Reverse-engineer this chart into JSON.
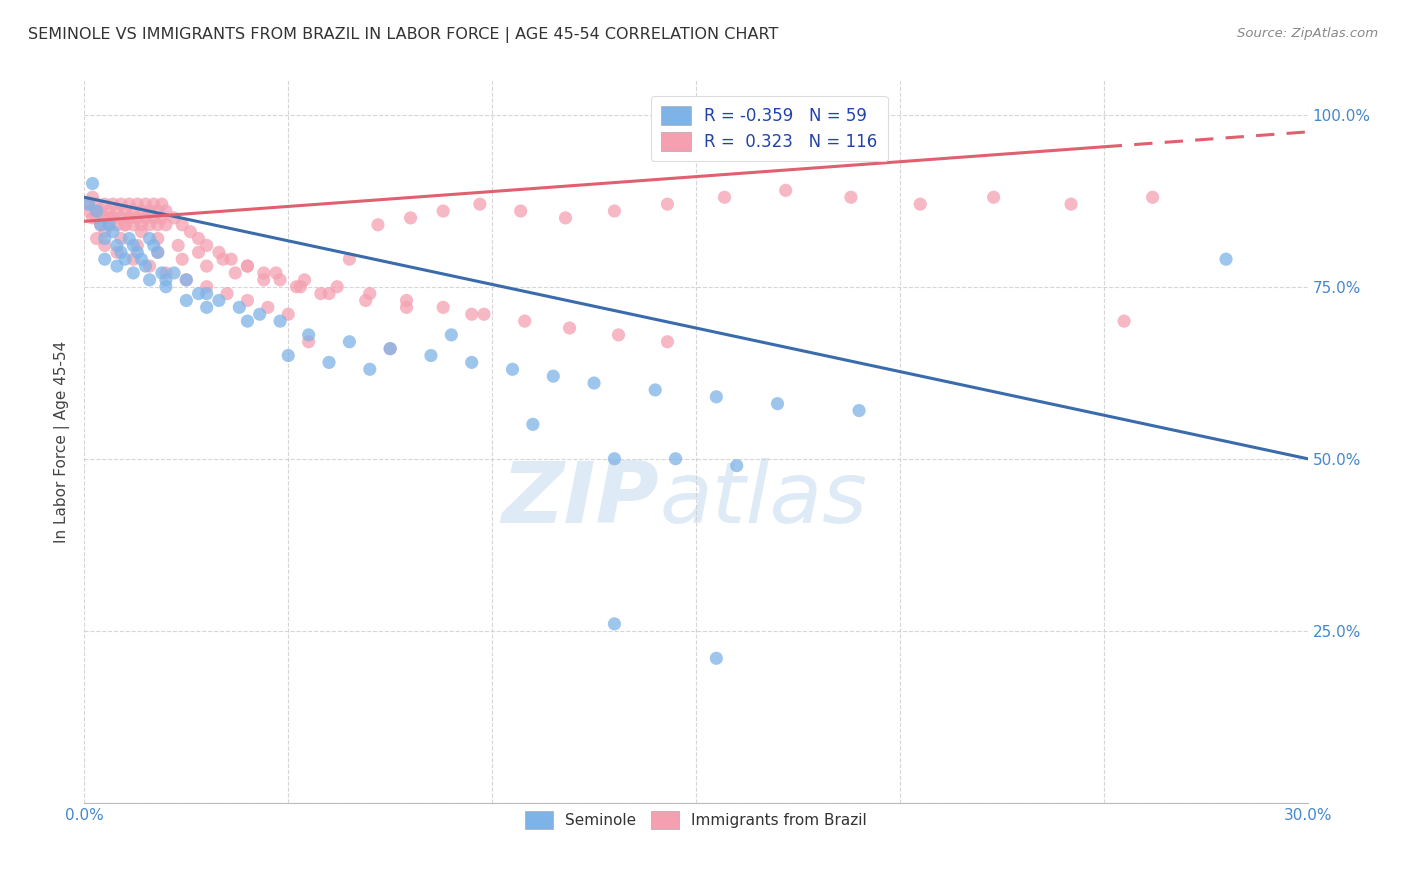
{
  "title": "SEMINOLE VS IMMIGRANTS FROM BRAZIL IN LABOR FORCE | AGE 45-54 CORRELATION CHART",
  "source": "Source: ZipAtlas.com",
  "ylabel": "In Labor Force | Age 45-54",
  "x_min": 0.0,
  "x_max": 0.3,
  "y_min": 0.0,
  "y_max": 1.05,
  "x_ticks": [
    0.0,
    0.05,
    0.1,
    0.15,
    0.2,
    0.25,
    0.3
  ],
  "y_ticks": [
    0.0,
    0.25,
    0.5,
    0.75,
    1.0
  ],
  "y_tick_labels": [
    "",
    "25.0%",
    "50.0%",
    "75.0%",
    "100.0%"
  ],
  "blue_R": -0.359,
  "blue_N": 59,
  "pink_R": 0.323,
  "pink_N": 116,
  "blue_color": "#7EB3E8",
  "pink_color": "#F4A0B0",
  "blue_line_color": "#3A6BAA",
  "pink_line_color": "#E06070",
  "watermark_zip": "ZIP",
  "watermark_atlas": "atlas",
  "legend_blue_label": "Seminole",
  "legend_pink_label": "Immigrants from Brazil",
  "blue_line_x0": 0.0,
  "blue_line_y0": 0.88,
  "blue_line_x1": 0.3,
  "blue_line_y1": 0.5,
  "pink_line_x0": 0.0,
  "pink_line_y0": 0.845,
  "pink_line_x1": 0.3,
  "pink_line_y1": 0.975,
  "blue_scatter_x": [
    0.001,
    0.002,
    0.003,
    0.004,
    0.005,
    0.006,
    0.007,
    0.008,
    0.009,
    0.01,
    0.011,
    0.012,
    0.013,
    0.014,
    0.015,
    0.016,
    0.017,
    0.018,
    0.019,
    0.02,
    0.022,
    0.025,
    0.028,
    0.03,
    0.033,
    0.038,
    0.043,
    0.048,
    0.055,
    0.065,
    0.075,
    0.085,
    0.095,
    0.105,
    0.115,
    0.125,
    0.14,
    0.155,
    0.17,
    0.19,
    0.005,
    0.008,
    0.012,
    0.016,
    0.02,
    0.025,
    0.03,
    0.04,
    0.05,
    0.06,
    0.07,
    0.13,
    0.145,
    0.16,
    0.13,
    0.155,
    0.11,
    0.09,
    0.28
  ],
  "blue_scatter_y": [
    0.87,
    0.9,
    0.86,
    0.84,
    0.82,
    0.84,
    0.83,
    0.81,
    0.8,
    0.79,
    0.82,
    0.81,
    0.8,
    0.79,
    0.78,
    0.82,
    0.81,
    0.8,
    0.77,
    0.76,
    0.77,
    0.76,
    0.74,
    0.74,
    0.73,
    0.72,
    0.71,
    0.7,
    0.68,
    0.67,
    0.66,
    0.65,
    0.64,
    0.63,
    0.62,
    0.61,
    0.6,
    0.59,
    0.58,
    0.57,
    0.79,
    0.78,
    0.77,
    0.76,
    0.75,
    0.73,
    0.72,
    0.7,
    0.65,
    0.64,
    0.63,
    0.5,
    0.5,
    0.49,
    0.26,
    0.21,
    0.55,
    0.68,
    0.79
  ],
  "pink_scatter_x": [
    0.001,
    0.001,
    0.002,
    0.002,
    0.003,
    0.003,
    0.004,
    0.004,
    0.005,
    0.005,
    0.006,
    0.006,
    0.007,
    0.007,
    0.008,
    0.008,
    0.009,
    0.009,
    0.01,
    0.01,
    0.011,
    0.011,
    0.012,
    0.012,
    0.013,
    0.013,
    0.014,
    0.014,
    0.015,
    0.015,
    0.016,
    0.016,
    0.017,
    0.017,
    0.018,
    0.018,
    0.019,
    0.019,
    0.02,
    0.02,
    0.022,
    0.024,
    0.026,
    0.028,
    0.03,
    0.033,
    0.036,
    0.04,
    0.044,
    0.048,
    0.053,
    0.058,
    0.065,
    0.072,
    0.08,
    0.088,
    0.097,
    0.107,
    0.118,
    0.13,
    0.143,
    0.157,
    0.172,
    0.188,
    0.205,
    0.223,
    0.242,
    0.262,
    0.003,
    0.005,
    0.008,
    0.012,
    0.016,
    0.02,
    0.025,
    0.03,
    0.035,
    0.04,
    0.045,
    0.05,
    0.003,
    0.006,
    0.01,
    0.014,
    0.018,
    0.023,
    0.028,
    0.034,
    0.04,
    0.047,
    0.054,
    0.062,
    0.07,
    0.079,
    0.088,
    0.098,
    0.108,
    0.119,
    0.131,
    0.143,
    0.005,
    0.009,
    0.013,
    0.018,
    0.024,
    0.03,
    0.037,
    0.044,
    0.052,
    0.06,
    0.069,
    0.079,
    0.055,
    0.075,
    0.095,
    0.255
  ],
  "pink_scatter_y": [
    0.87,
    0.86,
    0.88,
    0.85,
    0.87,
    0.85,
    0.86,
    0.84,
    0.87,
    0.85,
    0.86,
    0.84,
    0.87,
    0.85,
    0.86,
    0.84,
    0.87,
    0.85,
    0.86,
    0.84,
    0.87,
    0.85,
    0.86,
    0.84,
    0.87,
    0.85,
    0.86,
    0.84,
    0.87,
    0.85,
    0.86,
    0.84,
    0.87,
    0.85,
    0.86,
    0.84,
    0.87,
    0.85,
    0.86,
    0.84,
    0.85,
    0.84,
    0.83,
    0.82,
    0.81,
    0.8,
    0.79,
    0.78,
    0.77,
    0.76,
    0.75,
    0.74,
    0.79,
    0.84,
    0.85,
    0.86,
    0.87,
    0.86,
    0.85,
    0.86,
    0.87,
    0.88,
    0.89,
    0.88,
    0.87,
    0.88,
    0.87,
    0.88,
    0.82,
    0.81,
    0.8,
    0.79,
    0.78,
    0.77,
    0.76,
    0.75,
    0.74,
    0.73,
    0.72,
    0.71,
    0.86,
    0.85,
    0.84,
    0.83,
    0.82,
    0.81,
    0.8,
    0.79,
    0.78,
    0.77,
    0.76,
    0.75,
    0.74,
    0.73,
    0.72,
    0.71,
    0.7,
    0.69,
    0.68,
    0.67,
    0.83,
    0.82,
    0.81,
    0.8,
    0.79,
    0.78,
    0.77,
    0.76,
    0.75,
    0.74,
    0.73,
    0.72,
    0.67,
    0.66,
    0.71,
    0.7
  ]
}
